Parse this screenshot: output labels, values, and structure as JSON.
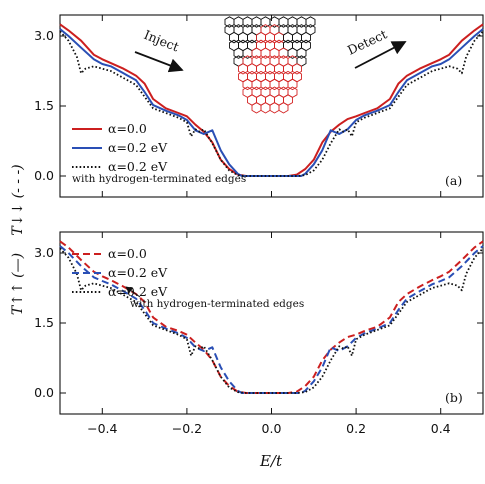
{
  "chart_data": [
    {
      "type": "line",
      "panel_label": "(a)",
      "y_tick_labels": [
        "0.0",
        "1.5",
        "3.0"
      ],
      "xlim": [
        -0.5,
        0.5
      ],
      "ylim": [
        -0.45,
        3.45
      ],
      "legend": [
        {
          "label": "α=0.0",
          "color": "#cc1f1f",
          "style": "solid"
        },
        {
          "label": "α=0.2 eV",
          "color": "#2a4fb5",
          "style": "solid"
        },
        {
          "label": "α=0.2 eV",
          "color": "#111111",
          "style": "dotted"
        }
      ],
      "annotation": "with hydrogen-terminated edges",
      "inset": {
        "inject_label": "Inject",
        "detect_label": "Detect"
      },
      "series": [
        {
          "name": "α=0.0",
          "color": "#cc1f1f",
          "dash": "none",
          "x": [
            -0.5,
            -0.48,
            -0.45,
            -0.42,
            -0.4,
            -0.38,
            -0.35,
            -0.32,
            -0.3,
            -0.28,
            -0.25,
            -0.22,
            -0.2,
            -0.18,
            -0.16,
            -0.14,
            -0.12,
            -0.1,
            -0.08,
            -0.06,
            -0.04,
            0,
            0.04,
            0.06,
            0.08,
            0.1,
            0.12,
            0.14,
            0.16,
            0.18,
            0.2,
            0.22,
            0.25,
            0.28,
            0.3,
            0.32,
            0.35,
            0.38,
            0.4,
            0.42,
            0.45,
            0.48,
            0.5
          ],
          "y": [
            3.25,
            3.12,
            2.9,
            2.6,
            2.5,
            2.42,
            2.3,
            2.15,
            1.98,
            1.65,
            1.45,
            1.35,
            1.28,
            1.1,
            0.95,
            0.72,
            0.35,
            0.15,
            0.03,
            0,
            0,
            0,
            0,
            0.03,
            0.15,
            0.35,
            0.72,
            0.95,
            1.1,
            1.22,
            1.28,
            1.35,
            1.45,
            1.65,
            1.98,
            2.15,
            2.3,
            2.42,
            2.5,
            2.6,
            2.9,
            3.12,
            3.25
          ]
        },
        {
          "name": "α=0.2 eV",
          "color": "#2a4fb5",
          "dash": "none",
          "x": [
            -0.5,
            -0.48,
            -0.45,
            -0.42,
            -0.4,
            -0.38,
            -0.35,
            -0.32,
            -0.3,
            -0.28,
            -0.25,
            -0.22,
            -0.2,
            -0.18,
            -0.16,
            -0.14,
            -0.12,
            -0.1,
            -0.08,
            -0.07,
            -0.05,
            0,
            0.05,
            0.07,
            0.08,
            0.1,
            0.12,
            0.14,
            0.16,
            0.18,
            0.2,
            0.22,
            0.25,
            0.28,
            0.3,
            0.32,
            0.35,
            0.38,
            0.4,
            0.42,
            0.45,
            0.48,
            0.5
          ],
          "y": [
            3.15,
            3.0,
            2.75,
            2.5,
            2.4,
            2.35,
            2.2,
            2.05,
            1.8,
            1.52,
            1.4,
            1.3,
            1.2,
            0.98,
            0.9,
            0.98,
            0.55,
            0.25,
            0.05,
            0,
            0,
            0,
            0,
            0,
            0.05,
            0.25,
            0.55,
            0.98,
            0.9,
            1.0,
            1.2,
            1.3,
            1.4,
            1.52,
            1.8,
            2.05,
            2.2,
            2.35,
            2.4,
            2.5,
            2.75,
            3.0,
            3.15
          ]
        },
        {
          "name": "α=0.2 eV (hydrogen-terminated edges)",
          "color": "#111111",
          "dash": "dotted",
          "x": [
            -0.5,
            -0.48,
            -0.46,
            -0.45,
            -0.44,
            -0.42,
            -0.4,
            -0.38,
            -0.35,
            -0.32,
            -0.3,
            -0.28,
            -0.25,
            -0.22,
            -0.2,
            -0.19,
            -0.18,
            -0.17,
            -0.16,
            -0.14,
            -0.12,
            -0.1,
            -0.08,
            -0.06,
            -0.04,
            0,
            0.04,
            0.06,
            0.08,
            0.1,
            0.12,
            0.14,
            0.16,
            0.17,
            0.18,
            0.19,
            0.2,
            0.22,
            0.25,
            0.28,
            0.3,
            0.32,
            0.35,
            0.38,
            0.4,
            0.42,
            0.44,
            0.45,
            0.46,
            0.48,
            0.5
          ],
          "y": [
            3.1,
            2.9,
            2.55,
            2.2,
            2.3,
            2.35,
            2.3,
            2.25,
            2.1,
            1.95,
            1.7,
            1.45,
            1.35,
            1.25,
            1.15,
            0.85,
            1.0,
            0.95,
            1.0,
            0.7,
            0.35,
            0.12,
            0.02,
            0,
            0,
            0,
            0,
            0,
            0.02,
            0.12,
            0.35,
            0.7,
            1.0,
            0.95,
            1.0,
            0.85,
            1.15,
            1.25,
            1.35,
            1.45,
            1.7,
            1.95,
            2.1,
            2.25,
            2.3,
            2.35,
            2.3,
            2.2,
            2.55,
            2.9,
            3.1
          ]
        }
      ]
    },
    {
      "type": "line",
      "panel_label": "(b)",
      "y_tick_labels": [
        "0.0",
        "1.5",
        "3.0"
      ],
      "x_tick_labels": [
        "−0.4",
        "−0.2",
        "0.0",
        "0.2",
        "0.4"
      ],
      "xlim": [
        -0.5,
        0.5
      ],
      "ylim": [
        -0.45,
        3.45
      ],
      "legend": [
        {
          "label": "α=0.0",
          "color": "#cc1f1f",
          "style": "dashed"
        },
        {
          "label": "α=0.2 eV",
          "color": "#2a4fb5",
          "style": "dashed"
        },
        {
          "label": "α=0.2 eV",
          "color": "#111111",
          "style": "dotted"
        }
      ],
      "annotation": "with hydrogen-terminated edges",
      "series": [
        {
          "name": "α=0.0",
          "color": "#cc1f1f",
          "dash": "dashed",
          "x": [
            -0.5,
            -0.48,
            -0.45,
            -0.42,
            -0.4,
            -0.38,
            -0.35,
            -0.32,
            -0.3,
            -0.28,
            -0.25,
            -0.22,
            -0.2,
            -0.18,
            -0.16,
            -0.14,
            -0.12,
            -0.1,
            -0.08,
            -0.06,
            -0.04,
            0,
            0.04,
            0.06,
            0.08,
            0.1,
            0.12,
            0.14,
            0.16,
            0.18,
            0.2,
            0.22,
            0.25,
            0.28,
            0.3,
            0.32,
            0.35,
            0.38,
            0.4,
            0.42,
            0.45,
            0.48,
            0.5
          ],
          "y": [
            3.25,
            3.12,
            2.85,
            2.6,
            2.5,
            2.42,
            2.28,
            2.12,
            1.95,
            1.62,
            1.42,
            1.33,
            1.25,
            1.08,
            0.93,
            0.7,
            0.35,
            0.15,
            0.03,
            0,
            0,
            0,
            0,
            0.03,
            0.15,
            0.35,
            0.7,
            0.93,
            1.08,
            1.2,
            1.25,
            1.33,
            1.42,
            1.62,
            1.95,
            2.12,
            2.28,
            2.42,
            2.5,
            2.6,
            2.85,
            3.12,
            3.25
          ]
        },
        {
          "name": "α=0.2 eV",
          "color": "#2a4fb5",
          "dash": "dashed",
          "x": [
            -0.5,
            -0.48,
            -0.45,
            -0.42,
            -0.4,
            -0.38,
            -0.35,
            -0.32,
            -0.3,
            -0.28,
            -0.25,
            -0.22,
            -0.2,
            -0.18,
            -0.16,
            -0.14,
            -0.12,
            -0.1,
            -0.08,
            -0.07,
            -0.05,
            0,
            0.05,
            0.07,
            0.08,
            0.1,
            0.12,
            0.14,
            0.16,
            0.18,
            0.2,
            0.22,
            0.25,
            0.28,
            0.3,
            0.32,
            0.35,
            0.38,
            0.4,
            0.42,
            0.45,
            0.48,
            0.5
          ],
          "y": [
            3.15,
            3.0,
            2.72,
            2.48,
            2.4,
            2.33,
            2.18,
            2.02,
            1.78,
            1.5,
            1.38,
            1.28,
            1.18,
            0.98,
            0.9,
            0.98,
            0.55,
            0.25,
            0.05,
            0,
            0,
            0,
            0,
            0,
            0.05,
            0.25,
            0.55,
            0.98,
            0.9,
            1.0,
            1.18,
            1.28,
            1.38,
            1.5,
            1.78,
            2.02,
            2.18,
            2.33,
            2.4,
            2.48,
            2.72,
            3.0,
            3.15
          ]
        },
        {
          "name": "α=0.2 eV (hydrogen-terminated edges)",
          "color": "#111111",
          "dash": "dotted",
          "x": [
            -0.5,
            -0.48,
            -0.46,
            -0.45,
            -0.44,
            -0.42,
            -0.4,
            -0.38,
            -0.35,
            -0.32,
            -0.3,
            -0.28,
            -0.25,
            -0.22,
            -0.2,
            -0.19,
            -0.18,
            -0.17,
            -0.16,
            -0.14,
            -0.12,
            -0.1,
            -0.08,
            -0.06,
            -0.04,
            0,
            0.04,
            0.06,
            0.08,
            0.1,
            0.12,
            0.14,
            0.16,
            0.17,
            0.18,
            0.19,
            0.2,
            0.22,
            0.25,
            0.28,
            0.3,
            0.32,
            0.35,
            0.38,
            0.4,
            0.42,
            0.44,
            0.45,
            0.46,
            0.48,
            0.5
          ],
          "y": [
            3.1,
            2.9,
            2.55,
            2.2,
            2.3,
            2.35,
            2.3,
            2.25,
            2.1,
            1.95,
            1.7,
            1.45,
            1.35,
            1.25,
            1.15,
            0.8,
            1.0,
            0.95,
            1.0,
            0.7,
            0.35,
            0.12,
            0.02,
            0,
            0,
            0,
            0,
            0,
            0.02,
            0.12,
            0.35,
            0.7,
            1.0,
            0.95,
            1.0,
            0.8,
            1.15,
            1.25,
            1.35,
            1.45,
            1.7,
            1.95,
            2.1,
            2.25,
            2.3,
            2.35,
            2.3,
            2.2,
            2.55,
            2.9,
            3.1
          ]
        }
      ]
    }
  ],
  "axes": {
    "ylabel_top": "T↓↓ (- - -)",
    "ylabel_bottom": "T↑↑ (—)",
    "xlabel": "E/t"
  }
}
